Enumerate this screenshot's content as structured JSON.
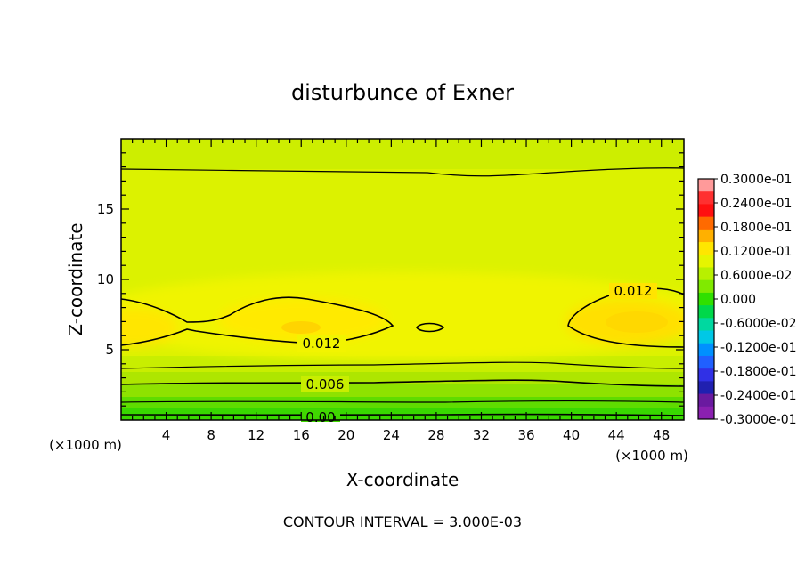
{
  "chart_data": {
    "type": "contour",
    "title": "disturbunce of Exner",
    "xlabel": "X-coordinate",
    "ylabel": "Z-coordinate",
    "x_unit_label": "(×1000 m)",
    "y_unit_label": "(×1000 m)",
    "footer": "CONTOUR INTERVAL = 3.000E-03",
    "xlim": [
      0,
      50
    ],
    "ylim": [
      0,
      20
    ],
    "x_ticks": [
      4,
      8,
      12,
      16,
      20,
      24,
      28,
      32,
      36,
      40,
      44,
      48
    ],
    "x_tick_labels": [
      "4",
      "8",
      "12",
      "16",
      "20",
      "24",
      "28",
      "32",
      "36",
      "40",
      "44",
      "48"
    ],
    "y_ticks": [
      5,
      10,
      15
    ],
    "y_tick_labels": [
      "5",
      "10",
      "15"
    ],
    "contour_interval": 0.003,
    "contour_labels": [
      {
        "text": "0.012",
        "x": 47,
        "z": 9.2
      },
      {
        "text": "0.012",
        "x": 18.2,
        "z": 5.4
      },
      {
        "text": "0.006",
        "x": 18.2,
        "z": 2.6
      },
      {
        "text": "0.00",
        "x": 17.5,
        "z": 0.1
      }
    ],
    "colorbar": {
      "min": -0.03,
      "max": 0.03,
      "colors": [
        "#ff9a9a",
        "#ff3030",
        "#ff1010",
        "#ff6a00",
        "#ffb000",
        "#ffe600",
        "#e6f500",
        "#b8f000",
        "#80ea00",
        "#30e000",
        "#00d84a",
        "#00d8a0",
        "#00c8e6",
        "#0090ff",
        "#2060ff",
        "#3030e6",
        "#2020b0",
        "#6a1aa0",
        "#8a20b0"
      ],
      "labels": [
        "0.3000e-01",
        "0.2400e-01",
        "0.1800e-01",
        "0.1200e-01",
        "0.6000e-02",
        "0.000",
        "-0.6000e-02",
        "-0.1200e-01",
        "-0.1800e-01",
        "-0.2400e-01",
        "-0.3000e-01"
      ]
    }
  }
}
